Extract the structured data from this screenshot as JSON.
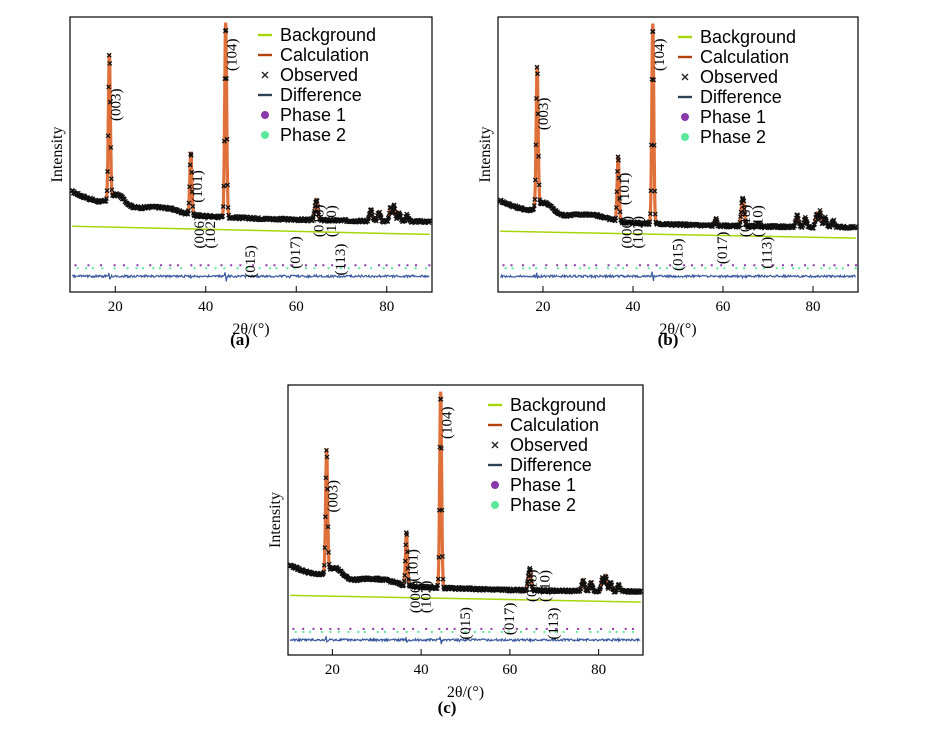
{
  "figure": {
    "panels": [
      {
        "id": "a",
        "caption": "(a)"
      },
      {
        "id": "b",
        "caption": "(b)"
      },
      {
        "id": "c",
        "caption": "(c)"
      }
    ]
  },
  "legend": {
    "entries": [
      {
        "label": "Background",
        "symbol": "line",
        "color": "#a6d609"
      },
      {
        "label": "Calculation",
        "symbol": "line",
        "color": "#b3410b"
      },
      {
        "label": "Observed",
        "symbol": "cross",
        "color": "#222222"
      },
      {
        "label": "Difference",
        "symbol": "line",
        "color": "#2e4155"
      },
      {
        "label": "Phase 1",
        "symbol": "dot",
        "color": "#8a3aa8"
      },
      {
        "label": "Phase 2",
        "symbol": "dot",
        "color": "#5ee89c"
      }
    ]
  },
  "colors": {
    "calculation": "#e0703a",
    "observed": "#111111",
    "background": "#a6d609",
    "difference": "#3a5aa0",
    "phase1_ticks": "#8a3aa8",
    "phase2_ticks": "#5ee89c"
  },
  "chart_data": {
    "type": "line",
    "title": "",
    "xlabel": "2θ/(°)",
    "ylabel": "Intensity",
    "xlim": [
      10,
      90
    ],
    "x_ticks": [
      20,
      40,
      60,
      80
    ],
    "x_tick_labels": [
      "20",
      "40",
      "60",
      "80"
    ],
    "y_units": "arbitrary (relative intensity, 0-1)",
    "series_names": [
      "Observed",
      "Calculation",
      "Background",
      "Difference",
      "Phase 1",
      "Phase 2"
    ],
    "peaks": [
      {
        "label": "(003)",
        "two_theta": 18.7
      },
      {
        "label": "(101)",
        "two_theta": 36.7
      },
      {
        "label": "(006)",
        "two_theta": 37.9
      },
      {
        "label": "(102)",
        "two_theta": 38.3
      },
      {
        "label": "(104)",
        "two_theta": 44.4
      },
      {
        "label": "(015)",
        "two_theta": 48.5
      },
      {
        "label": "(017)",
        "two_theta": 58.4
      },
      {
        "label": "(018)",
        "two_theta": 64.2
      },
      {
        "label": "(110)",
        "two_theta": 64.6
      },
      {
        "label": "(113)",
        "two_theta": 67.9
      }
    ],
    "panels": [
      {
        "id": "a",
        "relative_heights": {
          "003": 0.78,
          "101": 0.42,
          "006": 0.11,
          "102": 0.09,
          "104": 1.0,
          "015": 0.09,
          "017": 0.13,
          "018": 0.2,
          "110": 0.22,
          "113": 0.1
        },
        "background_level": 0.24
      },
      {
        "id": "b",
        "relative_heights": {
          "003": 0.74,
          "101": 0.41,
          "006": 0.11,
          "102": 0.09,
          "104": 1.0,
          "015": 0.12,
          "017": 0.15,
          "018": 0.21,
          "110": 0.21,
          "113": 0.13
        },
        "background_level": 0.2
      },
      {
        "id": "c",
        "relative_heights": {
          "003": 0.67,
          "101": 0.36,
          "006": 0.11,
          "102": 0.09,
          "104": 1.0,
          "015": 0.1,
          "017": 0.12,
          "018": 0.18,
          "110": 0.2,
          "113": 0.1
        },
        "background_level": 0.2
      }
    ]
  }
}
